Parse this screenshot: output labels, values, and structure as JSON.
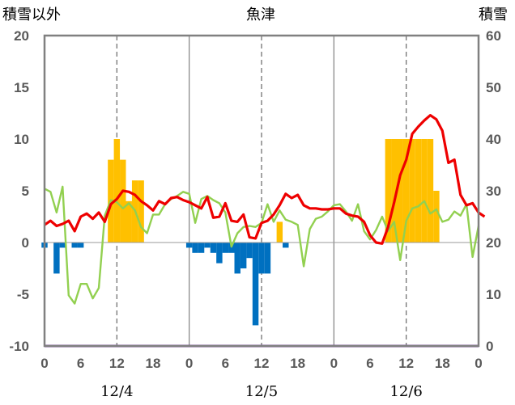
{
  "chart_data": {
    "type": "bar",
    "title": "魚津",
    "left_axis_label": "積雪以外",
    "right_axis_label": "積雪",
    "ylim_left": [
      -10,
      20
    ],
    "yticks_left": [
      "20",
      "15",
      "10",
      "5",
      "0",
      "-5",
      "-10"
    ],
    "ylim_right": [
      0,
      60
    ],
    "yticks_right": [
      "60",
      "50",
      "40",
      "30",
      "20",
      "10",
      "0"
    ],
    "x_hour_labels": [
      "0",
      "6",
      "12",
      "18",
      "0",
      "6",
      "12",
      "18",
      "0",
      "6",
      "12",
      "18",
      "0"
    ],
    "date_labels": [
      "12/4",
      "12/5",
      "12/6"
    ],
    "grid": "dashed vertical lines at 12:00, solid vertical lines at 0:00",
    "series": [
      {
        "kind": "line",
        "axis": "left",
        "color": "#ee0000",
        "values": [
          1.7,
          2.1,
          1.6,
          1.8,
          2.1,
          1.1,
          2.5,
          2.8,
          2.3,
          2.9,
          2.0,
          3.7,
          4.2,
          5.0,
          4.9,
          4.6,
          4.0,
          3.6,
          3.1,
          4.0,
          3.7,
          4.3,
          4.4,
          4.1,
          3.9,
          3.6,
          3.3,
          4.4,
          2.4,
          2.5,
          3.8,
          2.1,
          2.0,
          2.7,
          0.5,
          0.4,
          1.9,
          2.1,
          2.7,
          3.6,
          4.7,
          4.3,
          4.6,
          3.6,
          3.3,
          3.3,
          3.2,
          3.2,
          3.3,
          3.3,
          2.8,
          2.6,
          2.5,
          2.0,
          0.7,
          0.0,
          -0.1,
          1.5,
          3.9,
          6.5,
          8.0,
          10.5,
          11.2,
          11.8,
          12.3,
          11.9,
          10.8,
          7.7,
          8.0,
          4.6,
          3.6,
          3.8,
          2.9,
          2.5
        ]
      },
      {
        "kind": "line",
        "axis": "left",
        "color": "#92d050",
        "values": [
          5.2,
          4.9,
          2.9,
          5.4,
          -5.1,
          -5.9,
          -4.0,
          -4.0,
          -5.4,
          -4.4,
          2.6,
          4.1,
          3.9,
          3.3,
          3.8,
          3.1,
          1.5,
          0.9,
          2.7,
          2.7,
          3.7,
          4.2,
          4.5,
          4.9,
          4.7,
          1.9,
          4.2,
          4.5,
          4.1,
          3.8,
          2.9,
          -0.4,
          0.9,
          1.5,
          1.6,
          1.5,
          1.9,
          3.7,
          2.0,
          3.1,
          2.2,
          2.0,
          1.7,
          -2.3,
          1.3,
          2.3,
          2.5,
          3.0,
          3.6,
          3.7,
          3.0,
          2.1,
          3.7,
          1.1,
          0.3,
          1.2,
          2.5,
          1.1,
          2.0,
          -1.7,
          2.1,
          3.3,
          3.5,
          4.0,
          2.8,
          3.2,
          2.0,
          2.2,
          3.0,
          2.6,
          3.7,
          -1.4,
          1.6
        ]
      },
      {
        "kind": "bar",
        "axis": "left",
        "color": "#0070c0",
        "values": [
          -0.5,
          0.0,
          -3.0,
          -0.5,
          0.0,
          -0.5,
          -0.5,
          0.0,
          0.0,
          0.0,
          0.0,
          0.0,
          0.0,
          0.0,
          0.0,
          0.0,
          0.0,
          0.0,
          0.0,
          0.0,
          0.0,
          0.0,
          0.0,
          0.0,
          -0.5,
          -1.0,
          -1.0,
          -0.5,
          -1.0,
          -2.0,
          -1.0,
          -1.0,
          -3.0,
          -2.5,
          -1.5,
          -8.0,
          -3.0,
          -3.0,
          0.0,
          0.0,
          -0.5
        ]
      },
      {
        "kind": "bar",
        "axis": "left",
        "color": "#ffc000",
        "start_hour": 11,
        "values": [
          8.0,
          10.0,
          8.0,
          4.0,
          6.0,
          6.0
        ]
      },
      {
        "kind": "bar",
        "axis": "left",
        "color": "#ffc000",
        "start_hour": 39,
        "values": [
          2.0
        ]
      },
      {
        "kind": "bar",
        "axis": "left",
        "color": "#ffc000",
        "start_hour": 57,
        "values": [
          10.0,
          10.0,
          10.0,
          10.0,
          10.0,
          10.0,
          10.0,
          10.0,
          5.0
        ]
      }
    ],
    "baseline": {
      "value": -10,
      "color": "#7030a0"
    }
  }
}
